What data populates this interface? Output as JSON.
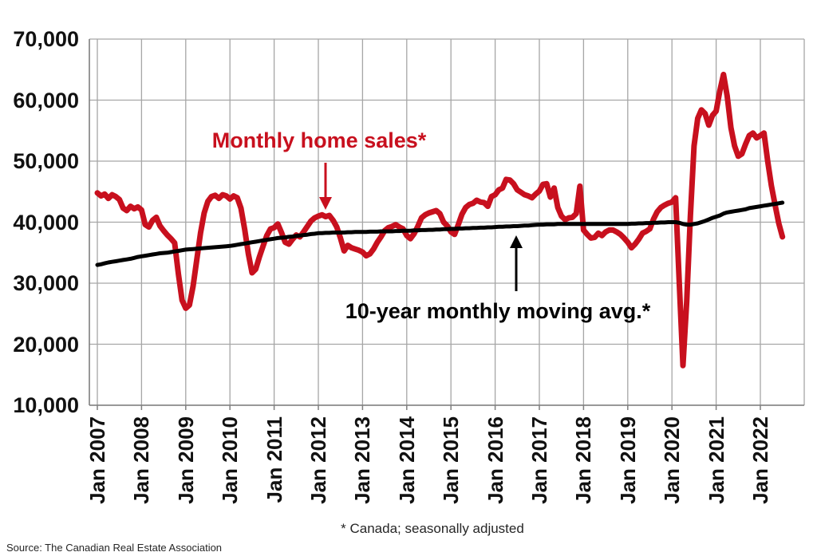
{
  "chart_data": {
    "type": "line",
    "title": "",
    "x_start": "Jan 2007",
    "x_end": "Jul 2022",
    "frequency": "monthly",
    "x_tick_labels": [
      "Jan 2007",
      "Jan 2008",
      "Jan 2009",
      "Jan 2010",
      "Jan 2011",
      "Jan 2012",
      "Jan 2013",
      "Jan 2014",
      "Jan 2015",
      "Jan 2016",
      "Jan 2017",
      "Jan 2018",
      "Jan 2019",
      "Jan 2020",
      "Jan 2021",
      "Jan 2022"
    ],
    "y_ticks": [
      70000,
      60000,
      50000,
      40000,
      30000,
      20000,
      10000
    ],
    "y_tick_labels": [
      "70,000",
      "60,000",
      "50,000",
      "40,000",
      "30,000",
      "20,000",
      "10,000"
    ],
    "ylim": [
      10000,
      70000
    ],
    "grid": true,
    "legend_position": "annotations-on-chart",
    "series": [
      {
        "name": "Monthly home sales*",
        "color": "#C8101E",
        "values": [
          44800,
          44300,
          44600,
          43900,
          44500,
          44200,
          43700,
          42300,
          41900,
          42600,
          42200,
          42500,
          42000,
          39600,
          39200,
          40300,
          40800,
          39400,
          38600,
          37900,
          37300,
          36600,
          31500,
          27200,
          25900,
          26400,
          29500,
          33800,
          38200,
          41500,
          43400,
          44200,
          44400,
          43900,
          44500,
          44300,
          43800,
          44300,
          44000,
          42300,
          38800,
          34800,
          31700,
          32300,
          34300,
          36100,
          37800,
          38900,
          39100,
          39700,
          38300,
          36700,
          36400,
          37200,
          37900,
          37600,
          38400,
          39300,
          40200,
          40700,
          41000,
          41200,
          40900,
          41100,
          40300,
          39200,
          37400,
          35300,
          36200,
          35800,
          35600,
          35400,
          35100,
          34500,
          34800,
          35600,
          36700,
          37600,
          38600,
          39100,
          39300,
          39600,
          39200,
          38900,
          37800,
          37300,
          38100,
          39300,
          40700,
          41200,
          41500,
          41700,
          41900,
          41400,
          40000,
          39400,
          38400,
          38000,
          39600,
          41300,
          42400,
          42900,
          43100,
          43600,
          43300,
          43200,
          42600,
          44200,
          44500,
          45300,
          45600,
          47000,
          46900,
          46300,
          45300,
          44900,
          44500,
          44300,
          44000,
          44600,
          45100,
          46200,
          46300,
          44100,
          45600,
          42400,
          41000,
          40400,
          40700,
          40800,
          41400,
          45900,
          38700,
          38000,
          37400,
          37500,
          38200,
          37800,
          38400,
          38700,
          38700,
          38400,
          38000,
          37400,
          36700,
          35800,
          36400,
          37200,
          38200,
          38500,
          38900,
          40500,
          41700,
          42400,
          42800,
          43100,
          43300,
          44000,
          30000,
          16500,
          27000,
          41000,
          52500,
          57000,
          58400,
          57800,
          55900,
          57500,
          58200,
          61500,
          64200,
          60700,
          55500,
          52500,
          50800,
          51200,
          52800,
          54200,
          54600,
          53800,
          54200,
          54600,
          50000,
          46000,
          42800,
          39800,
          37600
        ]
      },
      {
        "name": "10-year monthly moving avg.*",
        "color": "#000000",
        "values": [
          33000,
          33100,
          33250,
          33400,
          33500,
          33600,
          33700,
          33800,
          33900,
          34000,
          34150,
          34300,
          34400,
          34500,
          34600,
          34700,
          34800,
          34900,
          34950,
          35000,
          35100,
          35200,
          35300,
          35400,
          35500,
          35550,
          35600,
          35650,
          35700,
          35750,
          35800,
          35850,
          35900,
          35950,
          36000,
          36050,
          36100,
          36200,
          36300,
          36400,
          36500,
          36600,
          36700,
          36800,
          36900,
          37000,
          37100,
          37200,
          37300,
          37400,
          37450,
          37500,
          37600,
          37650,
          37750,
          37800,
          37900,
          37950,
          38050,
          38100,
          38200,
          38200,
          38250,
          38250,
          38300,
          38300,
          38300,
          38300,
          38350,
          38350,
          38400,
          38400,
          38400,
          38400,
          38450,
          38450,
          38450,
          38500,
          38500,
          38500,
          38500,
          38550,
          38550,
          38600,
          38600,
          38600,
          38650,
          38650,
          38700,
          38700,
          38750,
          38750,
          38800,
          38800,
          38850,
          38850,
          38900,
          38900,
          38950,
          38950,
          39000,
          39000,
          39050,
          39050,
          39100,
          39100,
          39150,
          39150,
          39200,
          39250,
          39250,
          39300,
          39300,
          39350,
          39350,
          39400,
          39450,
          39450,
          39500,
          39550,
          39600,
          39600,
          39650,
          39650,
          39650,
          39700,
          39700,
          39700,
          39700,
          39700,
          39700,
          39700,
          39700,
          39700,
          39700,
          39700,
          39700,
          39700,
          39700,
          39700,
          39700,
          39700,
          39700,
          39700,
          39700,
          39750,
          39750,
          39800,
          39800,
          39850,
          39850,
          39900,
          39900,
          39950,
          39950,
          40000,
          40000,
          40000,
          39900,
          39700,
          39600,
          39600,
          39700,
          39800,
          40000,
          40200,
          40450,
          40700,
          40900,
          41100,
          41400,
          41600,
          41700,
          41800,
          41900,
          42000,
          42100,
          42300,
          42400,
          42500,
          42600,
          42700,
          42800,
          42900,
          43000,
          43100,
          43200
        ]
      }
    ]
  },
  "annotations": {
    "sales_label": "Monthly home sales*",
    "avg_label": "10-year monthly moving avg.*"
  },
  "footer": {
    "note": "* Canada; seasonally adjusted",
    "source": "Source: The Canadian Real Estate Association"
  }
}
